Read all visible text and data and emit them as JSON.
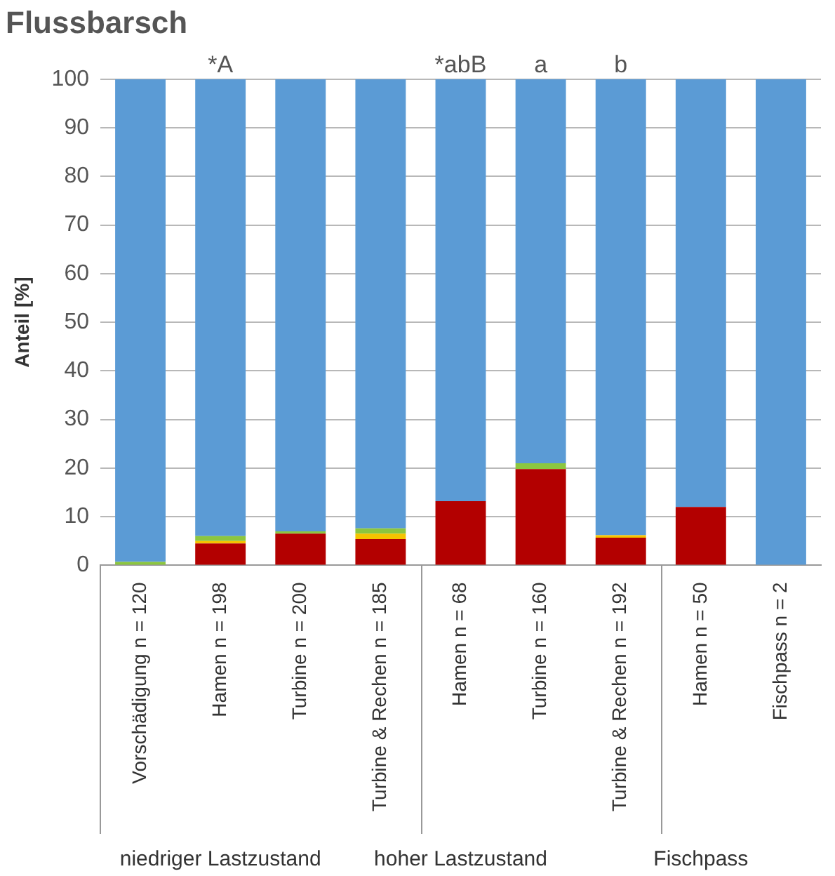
{
  "chart_data": {
    "type": "bar",
    "title": "Flussbarsch",
    "ylabel": "Anteil [%]",
    "stacked": true,
    "grid": "y",
    "legend": false,
    "categories": [
      "Vorschädigung n = 120",
      "Hamen n = 198",
      "Turbine n = 200",
      "Turbine & Rechen n = 185",
      "Hamen n = 68",
      "Turbine n = 160",
      "Turbine & Rechen n = 192",
      "Hamen n = 50",
      "Fischpass n = 2"
    ],
    "series": [
      {
        "color": "#b30000",
        "values": [
          0,
          4.5,
          6.5,
          5.4,
          13.2,
          19.8,
          5.7,
          12,
          0
        ]
      },
      {
        "color": "#f5c400",
        "values": [
          0,
          0.5,
          0,
          1.1,
          0,
          0,
          0.5,
          0,
          0
        ]
      },
      {
        "color": "#8cc63f",
        "values": [
          0.7,
          1,
          0.5,
          1.1,
          0,
          1.2,
          0,
          0,
          0
        ]
      },
      {
        "color": "#5b9bd5",
        "values": [
          99.3,
          94,
          93,
          92.4,
          86.8,
          79,
          93.8,
          88,
          100
        ]
      }
    ],
    "ylim": [
      0,
      100
    ],
    "yticks": [
      0,
      10,
      20,
      30,
      40,
      50,
      60,
      70,
      80,
      90,
      100
    ],
    "annotations": [
      {
        "text": "*A",
        "x": "Hamen n = 198",
        "y": 100
      },
      {
        "text": "*abB",
        "x": "Hamen n = 68",
        "y": 100
      },
      {
        "text": "a",
        "x": "Turbine n = 160",
        "y": 100
      },
      {
        "text": "b",
        "x": "Turbine & Rechen n = 192",
        "y": 100
      },
      "niedriger Lastzustand",
      "hoher Lastzustand",
      "Fischpass"
    ]
  }
}
